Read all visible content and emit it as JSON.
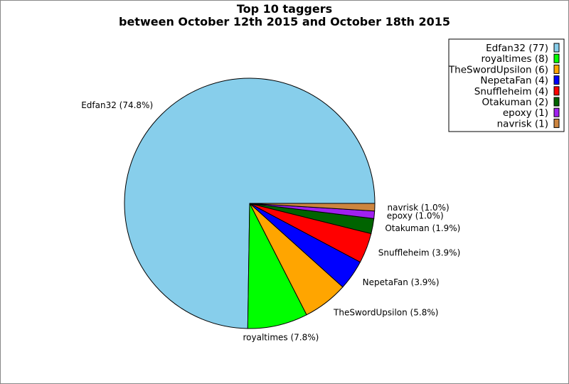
{
  "chart_data": {
    "type": "pie",
    "title": "Top 10 taggers",
    "subtitle": "between October 12th 2015 and October 18th 2015",
    "legend_position": "top-right",
    "slices": [
      {
        "name": "Edfan32",
        "value": 77,
        "percent": "74.8%",
        "color": "#87ceeb"
      },
      {
        "name": "royaltimes",
        "value": 8,
        "percent": "7.8%",
        "color": "#00ff00"
      },
      {
        "name": "TheSwordUpsilon",
        "value": 6,
        "percent": "5.8%",
        "color": "#ffa500"
      },
      {
        "name": "NepetaFan",
        "value": 4,
        "percent": "3.9%",
        "color": "#0000ff"
      },
      {
        "name": "Snuffleheim",
        "value": 4,
        "percent": "3.9%",
        "color": "#ff0000"
      },
      {
        "name": "Otakuman",
        "value": 2,
        "percent": "1.9%",
        "color": "#006400"
      },
      {
        "name": "epoxy",
        "value": 1,
        "percent": "1.0%",
        "color": "#a020f0"
      },
      {
        "name": "navrisk",
        "value": 1,
        "percent": "1.0%",
        "color": "#cd853f"
      }
    ]
  }
}
